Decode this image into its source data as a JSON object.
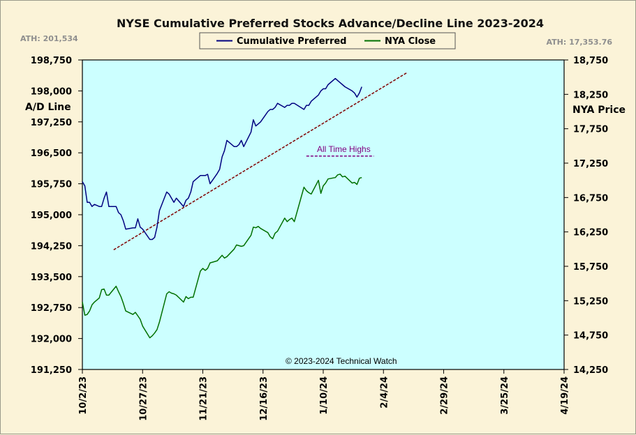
{
  "chart_data": {
    "type": "line",
    "title": "NYSE Cumulative  Preferred Stocks Advance/Decline  Line 2023-2024",
    "ath_left": "ATH: 201,534",
    "ath_right": "ATH: 17,353.76",
    "ylabel_left": "A/D Line",
    "ylabel_right": "NYA Price",
    "annotation": "All Time Highs",
    "copyright": "© 2023-2024  Technical Watch",
    "x_ticks": [
      "10/2/23",
      "10/27/23",
      "11/21/23",
      "12/16/23",
      "1/10/24",
      "2/4/24",
      "2/29/24",
      "3/25/24",
      "4/19/24"
    ],
    "x_range_days": [
      0,
      200
    ],
    "y_left": {
      "min": 191250,
      "max": 198750,
      "ticks": [
        "191,250",
        "192,000",
        "192,750",
        "193,500",
        "194,250",
        "195,000",
        "195,750",
        "196,500",
        "197,250",
        "198,000",
        "198,750"
      ]
    },
    "y_right": {
      "min": 14250,
      "max": 18750,
      "ticks": [
        "14,250",
        "14,750",
        "15,250",
        "15,750",
        "16,250",
        "16,750",
        "17,250",
        "17,750",
        "18,250",
        "18,750"
      ]
    },
    "grid": false,
    "legend_position": "top-center",
    "series": [
      {
        "name": "Cumulative Preferred",
        "axis": "left",
        "color": "#000080",
        "x": [
          0,
          1,
          2,
          3,
          4,
          5,
          7,
          8,
          9,
          10,
          11,
          14,
          15,
          16,
          17,
          18,
          21,
          22,
          23,
          24,
          25,
          28,
          29,
          30,
          31,
          32,
          35,
          36,
          37,
          38,
          39,
          42,
          43,
          44,
          45,
          46,
          49,
          50,
          51,
          52,
          53,
          56,
          57,
          58,
          59,
          60,
          63,
          64,
          65,
          66,
          67,
          70,
          71,
          72,
          73,
          74,
          77,
          78,
          79,
          80,
          81,
          84,
          85,
          86,
          87,
          88,
          92,
          93,
          94,
          95,
          98,
          99,
          100,
          101,
          102,
          105,
          106,
          107,
          108,
          109,
          112,
          113,
          114,
          115,
          116
        ],
        "y": [
          195800,
          195700,
          195300,
          195300,
          195200,
          195250,
          195200,
          195200,
          195400,
          195550,
          195200,
          195200,
          195050,
          195000,
          194850,
          194650,
          194680,
          194680,
          194900,
          194700,
          194650,
          194400,
          194400,
          194450,
          194700,
          195100,
          195550,
          195500,
          195400,
          195300,
          195400,
          195200,
          195350,
          195400,
          195550,
          195800,
          195950,
          195950,
          195950,
          195980,
          195750,
          196000,
          196100,
          196400,
          196550,
          196800,
          196650,
          196650,
          196700,
          196800,
          196650,
          197000,
          197300,
          197150,
          197200,
          197250,
          197500,
          197550,
          197550,
          197600,
          197700,
          197600,
          197650,
          197650,
          197700,
          197700,
          197550,
          197650,
          197650,
          197750,
          197900,
          198000,
          198050,
          198050,
          198150,
          198300,
          198250,
          198200,
          198150,
          198100,
          198000,
          197950,
          197850,
          197950,
          198100
        ]
      },
      {
        "name": "NYA Close",
        "axis": "right",
        "color": "#007000",
        "x": [
          0,
          1,
          2,
          3,
          4,
          5,
          7,
          8,
          9,
          10,
          11,
          14,
          15,
          16,
          17,
          18,
          21,
          22,
          23,
          24,
          25,
          28,
          29,
          30,
          31,
          32,
          35,
          36,
          37,
          38,
          39,
          42,
          43,
          44,
          45,
          46,
          49,
          50,
          51,
          52,
          53,
          56,
          57,
          58,
          59,
          60,
          63,
          64,
          65,
          66,
          67,
          70,
          71,
          72,
          73,
          74,
          77,
          78,
          79,
          80,
          81,
          84,
          85,
          86,
          87,
          88,
          92,
          93,
          94,
          95,
          98,
          99,
          100,
          101,
          102,
          105,
          106,
          107,
          108,
          109,
          112,
          113,
          114,
          115,
          116
        ],
        "y": [
          15230,
          15040,
          15050,
          15100,
          15190,
          15230,
          15290,
          15410,
          15420,
          15330,
          15330,
          15460,
          15380,
          15310,
          15210,
          15100,
          15050,
          15080,
          15030,
          14980,
          14880,
          14710,
          14740,
          14780,
          14830,
          14940,
          15350,
          15380,
          15360,
          15350,
          15330,
          15230,
          15310,
          15280,
          15300,
          15300,
          15680,
          15720,
          15690,
          15720,
          15800,
          15830,
          15870,
          15910,
          15870,
          15890,
          16000,
          16060,
          16050,
          16040,
          16050,
          16200,
          16320,
          16310,
          16330,
          16300,
          16240,
          16180,
          16150,
          16230,
          16260,
          16450,
          16400,
          16430,
          16450,
          16400,
          16900,
          16850,
          16820,
          16800,
          17000,
          16810,
          16920,
          16960,
          17020,
          17040,
          17080,
          17090,
          17050,
          17060,
          16960,
          16970,
          16940,
          17030,
          17040
        ]
      }
    ],
    "trendlines": [
      {
        "style": "dashed",
        "color": "#800000",
        "axis": "left",
        "from": [
          13,
          194150
        ],
        "to": [
          135,
          198450
        ]
      },
      {
        "style": "dashed",
        "color": "#800080",
        "axis": "left",
        "from": [
          93,
          196420
        ],
        "to": [
          121,
          196420
        ]
      }
    ]
  }
}
